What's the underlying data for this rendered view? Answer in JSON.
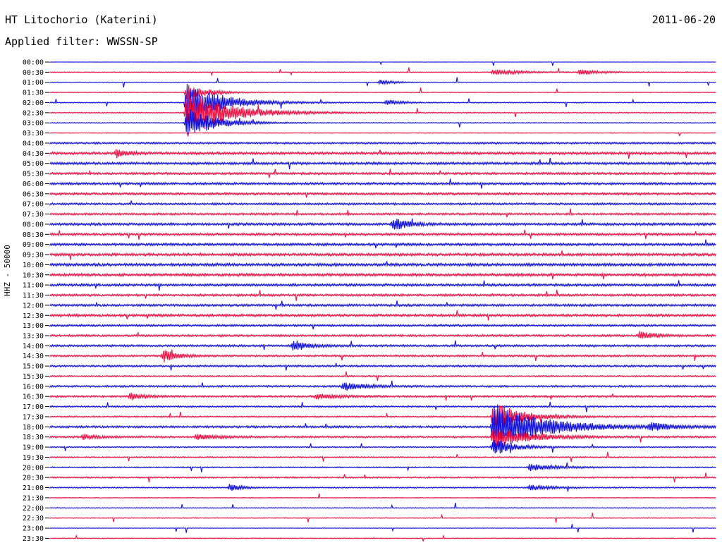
{
  "header": {
    "station": "HT Litochorio (Katerini)",
    "date": "2011-06-20",
    "filter": "Applied filter: WWSSN-SP",
    "channel_label": "HHZ - 50000"
  },
  "colors": {
    "even_trace": "#1010dd",
    "odd_trace": "#ee1144"
  },
  "chart_data": {
    "type": "line",
    "title": "HT Litochorio (Katerini)",
    "subtitle": "Applied filter: WWSSN-SP",
    "ylabel": "HHZ - 50000",
    "row_labels": [
      "00:00",
      "00:30",
      "01:00",
      "01:30",
      "02:00",
      "02:30",
      "03:00",
      "03:30",
      "04:00",
      "04:30",
      "05:00",
      "05:30",
      "06:00",
      "06:30",
      "07:00",
      "07:30",
      "08:00",
      "08:30",
      "09:00",
      "09:30",
      "10:00",
      "10:30",
      "11:00",
      "11:30",
      "12:00",
      "12:30",
      "13:00",
      "13:30",
      "14:00",
      "14:30",
      "15:00",
      "15:30",
      "16:00",
      "16:30",
      "17:00",
      "17:30",
      "18:00",
      "18:30",
      "19:00",
      "19:30",
      "20:00",
      "20:30",
      "21:00",
      "21:30",
      "22:00",
      "22:30",
      "23:00",
      "23:30"
    ],
    "row_noise": [
      0.15,
      0.4,
      0.3,
      0.35,
      0.5,
      0.5,
      0.45,
      0.35,
      0.9,
      1.2,
      1.2,
      1.1,
      1.1,
      1.1,
      1.0,
      1.0,
      1.2,
      1.1,
      1.2,
      1.3,
      1.4,
      1.3,
      1.2,
      1.1,
      1.1,
      1.2,
      1.0,
      1.0,
      1.0,
      0.9,
      0.9,
      0.7,
      0.9,
      0.9,
      0.8,
      0.7,
      1.0,
      0.9,
      0.6,
      0.6,
      0.6,
      0.7,
      0.6,
      0.4,
      0.4,
      0.4,
      0.3,
      0.4
    ],
    "events": [
      {
        "row": 4,
        "t": 0.205,
        "amp": 30,
        "dur": 0.05
      },
      {
        "row": 5,
        "t": 0.205,
        "amp": 32,
        "dur": 0.06
      },
      {
        "row": 6,
        "t": 0.205,
        "amp": 22,
        "dur": 0.04
      },
      {
        "row": 3,
        "t": 0.205,
        "amp": 12,
        "dur": 0.03
      },
      {
        "row": 9,
        "t": 0.1,
        "amp": 6,
        "dur": 0.015
      },
      {
        "row": 16,
        "t": 0.515,
        "amp": 10,
        "dur": 0.02
      },
      {
        "row": 29,
        "t": 0.17,
        "amp": 9,
        "dur": 0.02
      },
      {
        "row": 28,
        "t": 0.365,
        "amp": 8,
        "dur": 0.02
      },
      {
        "row": 32,
        "t": 0.44,
        "amp": 6,
        "dur": 0.03
      },
      {
        "row": 36,
        "t": 0.665,
        "amp": 34,
        "dur": 0.07
      },
      {
        "row": 35,
        "t": 0.665,
        "amp": 22,
        "dur": 0.04
      },
      {
        "row": 37,
        "t": 0.665,
        "amp": 16,
        "dur": 0.05
      },
      {
        "row": 38,
        "t": 0.665,
        "amp": 12,
        "dur": 0.03
      },
      {
        "row": 36,
        "t": 0.9,
        "amp": 6,
        "dur": 0.03
      },
      {
        "row": 40,
        "t": 0.72,
        "amp": 5,
        "dur": 0.04
      },
      {
        "row": 42,
        "t": 0.27,
        "amp": 6,
        "dur": 0.015
      },
      {
        "row": 42,
        "t": 0.72,
        "amp": 4,
        "dur": 0.03
      },
      {
        "row": 1,
        "t": 0.665,
        "amp": 4,
        "dur": 0.04
      },
      {
        "row": 1,
        "t": 0.795,
        "amp": 4,
        "dur": 0.03
      },
      {
        "row": 2,
        "t": 0.495,
        "amp": 4,
        "dur": 0.02
      },
      {
        "row": 4,
        "t": 0.505,
        "amp": 4,
        "dur": 0.02
      },
      {
        "row": 27,
        "t": 0.885,
        "amp": 6,
        "dur": 0.02
      },
      {
        "row": 33,
        "t": 0.12,
        "amp": 6,
        "dur": 0.02
      },
      {
        "row": 33,
        "t": 0.4,
        "amp": 4,
        "dur": 0.03
      },
      {
        "row": 37,
        "t": 0.05,
        "amp": 4,
        "dur": 0.02
      },
      {
        "row": 37,
        "t": 0.22,
        "amp": 4,
        "dur": 0.03
      }
    ]
  }
}
